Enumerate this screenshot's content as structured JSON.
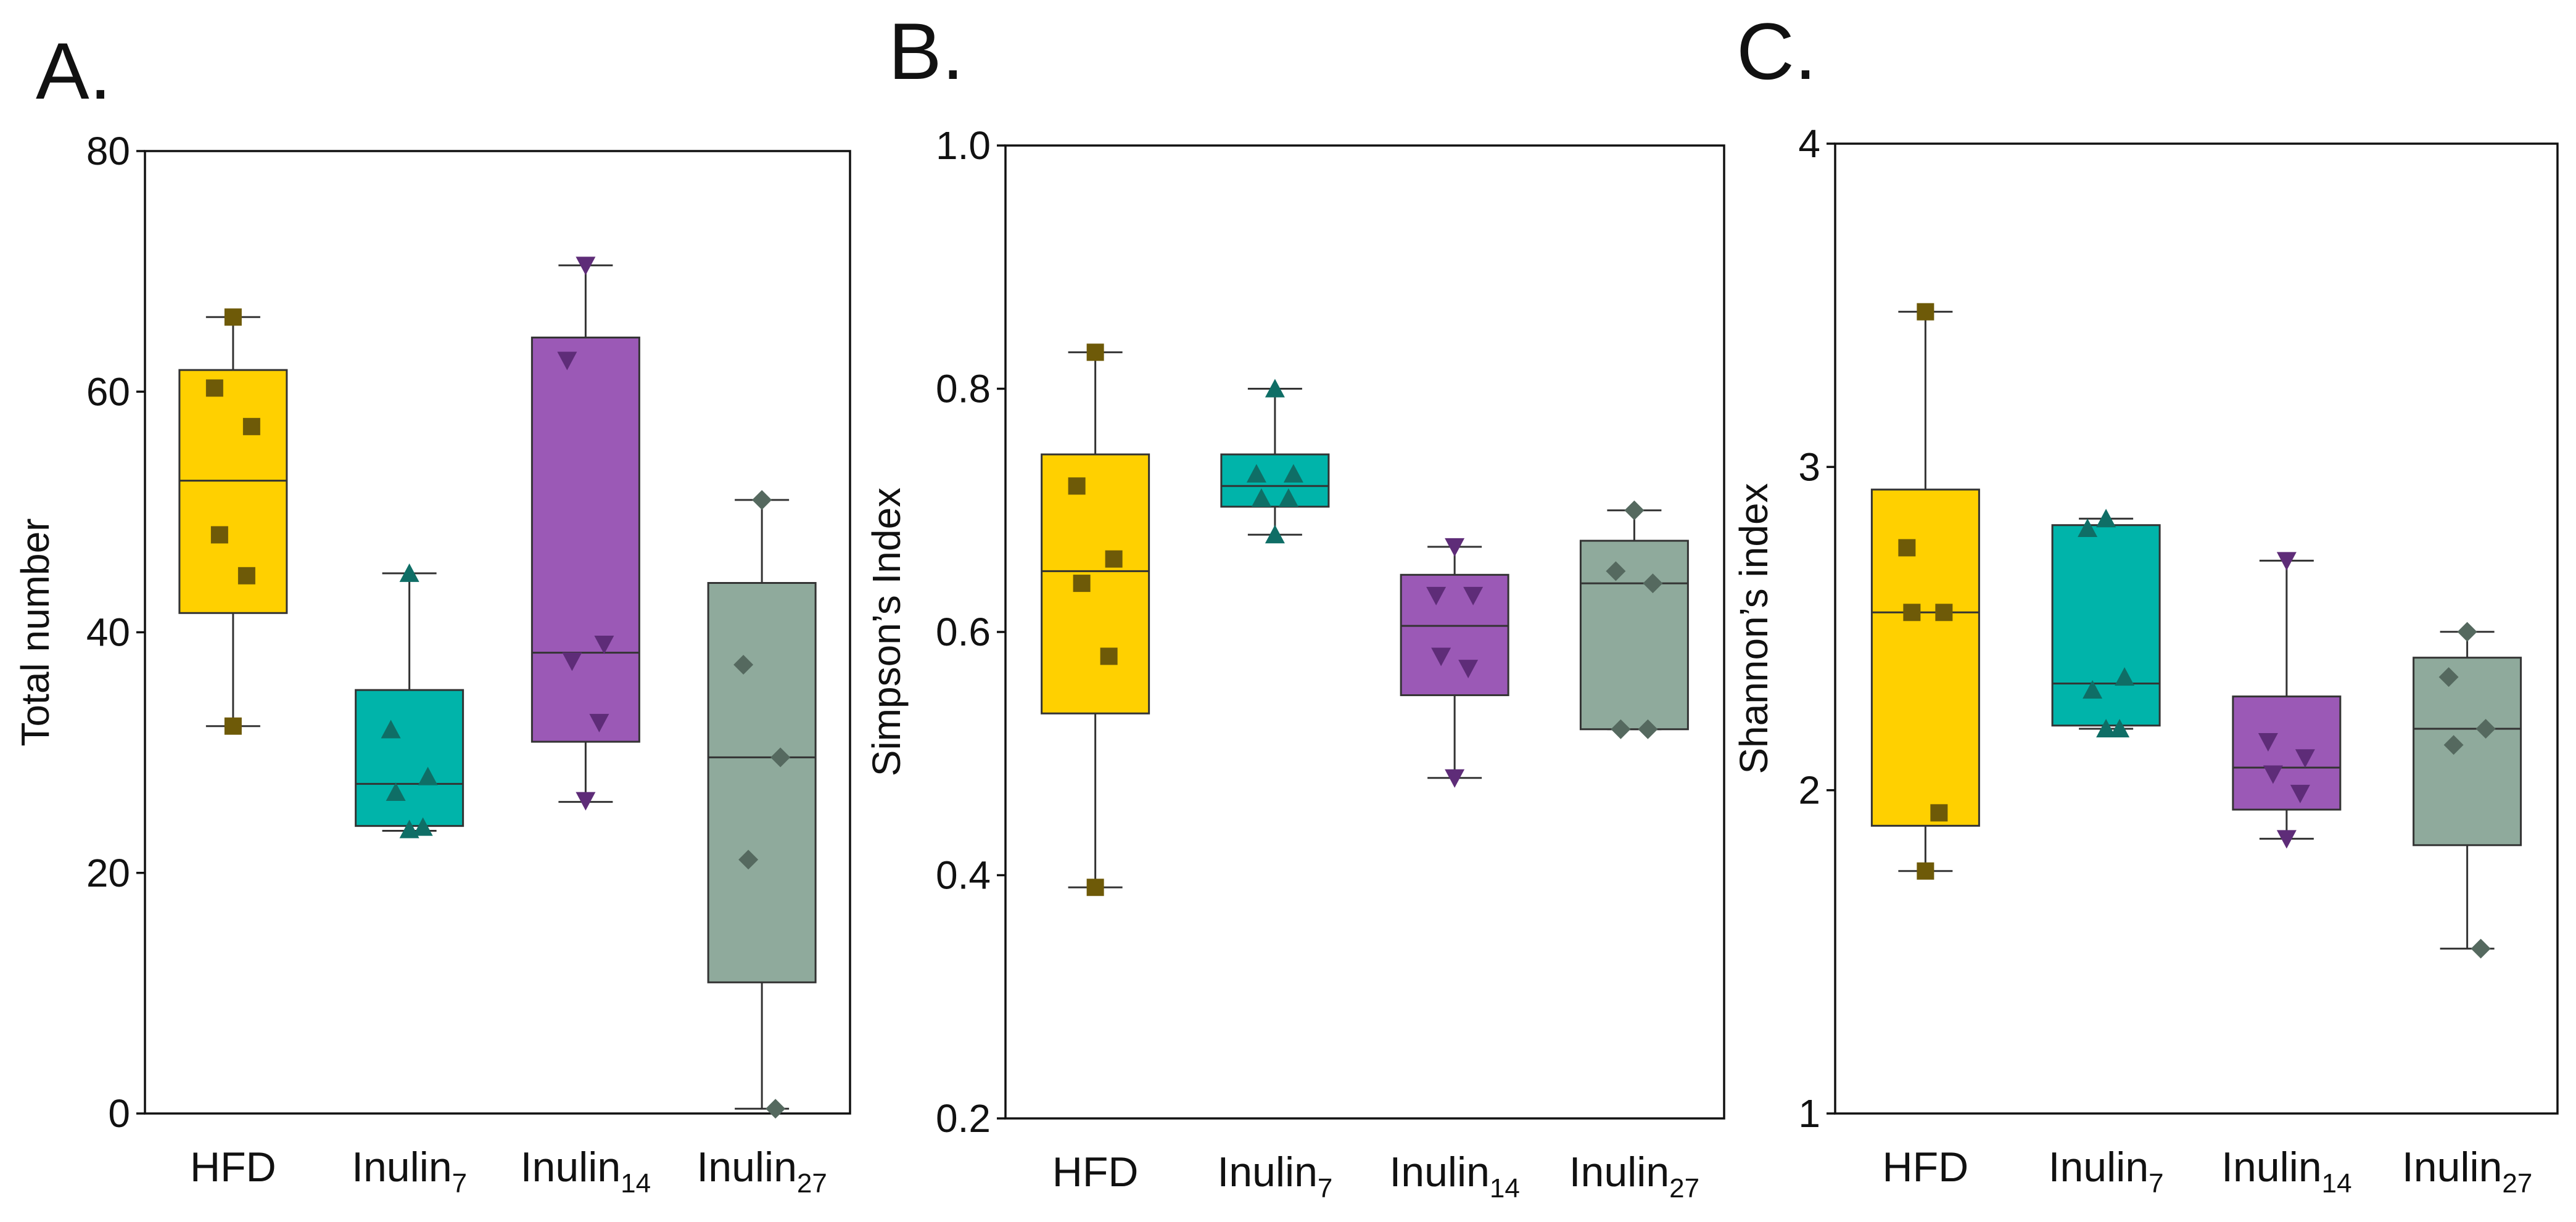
{
  "figure": {
    "panels": [
      "A.",
      "B.",
      "C."
    ]
  },
  "chart_data": [
    {
      "type": "box",
      "panel": "A.",
      "ylabel": "Total number",
      "ylim": [
        0,
        80
      ],
      "yticks": [
        0,
        20,
        40,
        60,
        80
      ],
      "tick_labels": [
        "0",
        "20",
        "40",
        "60",
        "80"
      ],
      "categories": [
        {
          "base": "HFD",
          "sub": ""
        },
        {
          "base": "Inulin",
          "sub": "7"
        },
        {
          "base": "Inulin",
          "sub": "14"
        },
        {
          "base": "Inulin",
          "sub": "27"
        }
      ],
      "series": [
        {
          "name": "HFD",
          "color": "#FFD000",
          "marker": "square",
          "marker_color": "#6E5A08",
          "min": 32.2,
          "q1": 41.6,
          "median": 52.6,
          "q3": 61.8,
          "max": 66.2,
          "points": [
            66.2,
            60.3,
            57.1,
            48.1,
            44.7,
            32.2
          ]
        },
        {
          "name": "Inulin7",
          "color": "#00B4AA",
          "marker": "triangle-up",
          "marker_color": "#0F6E66",
          "min": 23.5,
          "q1": 23.9,
          "median": 27.4,
          "q3": 35.2,
          "max": 44.9,
          "points": [
            44.9,
            31.9,
            28.0,
            26.7,
            23.8,
            23.6
          ]
        },
        {
          "name": "Inulin14",
          "color": "#9B59B6",
          "marker": "triangle-down",
          "marker_color": "#5E2C78",
          "min": 25.9,
          "q1": 30.9,
          "median": 38.3,
          "q3": 64.5,
          "max": 70.5,
          "points": [
            70.5,
            62.6,
            39.0,
            37.6,
            32.5,
            26.0
          ]
        },
        {
          "name": "Inulin27",
          "color": "#8FAA9C",
          "marker": "diamond",
          "marker_color": "#55695F",
          "min": 0.4,
          "q1": 10.9,
          "median": 29.6,
          "q3": 44.1,
          "max": 51.0,
          "points": [
            51.0,
            37.3,
            29.6,
            21.1,
            0.4
          ]
        }
      ]
    },
    {
      "type": "box",
      "panel": "B.",
      "ylabel": "Simpson’s Index",
      "ylim": [
        0.2,
        1.0
      ],
      "yticks": [
        0.2,
        0.4,
        0.6,
        0.8,
        1.0
      ],
      "tick_labels": [
        "0.2",
        "0.4",
        "0.6",
        "0.8",
        "1.0"
      ],
      "categories": [
        {
          "base": "HFD",
          "sub": ""
        },
        {
          "base": "Inulin",
          "sub": "7"
        },
        {
          "base": "Inulin",
          "sub": "14"
        },
        {
          "base": "Inulin",
          "sub": "27"
        }
      ],
      "series": [
        {
          "name": "HFD",
          "color": "#FFD000",
          "marker": "square",
          "marker_color": "#6E5A08",
          "min": 0.39,
          "q1": 0.533,
          "median": 0.65,
          "q3": 0.746,
          "max": 0.83,
          "points": [
            0.83,
            0.72,
            0.66,
            0.64,
            0.58,
            0.39
          ]
        },
        {
          "name": "Inulin7",
          "color": "#00B4AA",
          "marker": "triangle-up",
          "marker_color": "#0F6E66",
          "min": 0.68,
          "q1": 0.703,
          "median": 0.72,
          "q3": 0.746,
          "max": 0.8,
          "points": [
            0.8,
            0.73,
            0.73,
            0.71,
            0.71,
            0.68
          ]
        },
        {
          "name": "Inulin14",
          "color": "#9B59B6",
          "marker": "triangle-down",
          "marker_color": "#5E2C78",
          "min": 0.48,
          "q1": 0.548,
          "median": 0.605,
          "q3": 0.647,
          "max": 0.67,
          "points": [
            0.67,
            0.63,
            0.63,
            0.58,
            0.57,
            0.48
          ]
        },
        {
          "name": "Inulin27",
          "color": "#8FAA9C",
          "marker": "diamond",
          "marker_color": "#55695F",
          "min": 0.52,
          "q1": 0.52,
          "median": 0.64,
          "q3": 0.675,
          "max": 0.7,
          "points": [
            0.7,
            0.65,
            0.64,
            0.52,
            0.52
          ]
        }
      ]
    },
    {
      "type": "box",
      "panel": "C.",
      "ylabel": "Shannon’s index",
      "ylim": [
        1,
        4
      ],
      "yticks": [
        1,
        2,
        3,
        4
      ],
      "tick_labels": [
        "1",
        "2",
        "3",
        "4"
      ],
      "categories": [
        {
          "base": "HFD",
          "sub": ""
        },
        {
          "base": "Inulin",
          "sub": "7"
        },
        {
          "base": "Inulin",
          "sub": "14"
        },
        {
          "base": "Inulin",
          "sub": "27"
        }
      ],
      "series": [
        {
          "name": "HFD",
          "color": "#FFD000",
          "marker": "square",
          "marker_color": "#6E5A08",
          "min": 1.75,
          "q1": 1.89,
          "median": 2.55,
          "q3": 2.93,
          "max": 3.48,
          "points": [
            3.48,
            2.75,
            2.55,
            2.55,
            1.93,
            1.75
          ]
        },
        {
          "name": "Inulin7",
          "color": "#00B4AA",
          "marker": "triangle-up",
          "marker_color": "#0F6E66",
          "min": 2.19,
          "q1": 2.2,
          "median": 2.33,
          "q3": 2.82,
          "max": 2.84,
          "points": [
            2.84,
            2.81,
            2.35,
            2.31,
            2.19,
            2.19
          ]
        },
        {
          "name": "Inulin14",
          "color": "#9B59B6",
          "marker": "triangle-down",
          "marker_color": "#5E2C78",
          "min": 1.85,
          "q1": 1.94,
          "median": 2.07,
          "q3": 2.29,
          "max": 2.71,
          "points": [
            2.71,
            2.15,
            2.1,
            2.05,
            1.99,
            1.85
          ]
        },
        {
          "name": "Inulin27",
          "color": "#8FAA9C",
          "marker": "diamond",
          "marker_color": "#55695F",
          "min": 1.51,
          "q1": 1.83,
          "median": 2.19,
          "q3": 2.41,
          "max": 2.49,
          "points": [
            2.49,
            2.35,
            2.19,
            2.14,
            1.51
          ]
        }
      ]
    }
  ]
}
